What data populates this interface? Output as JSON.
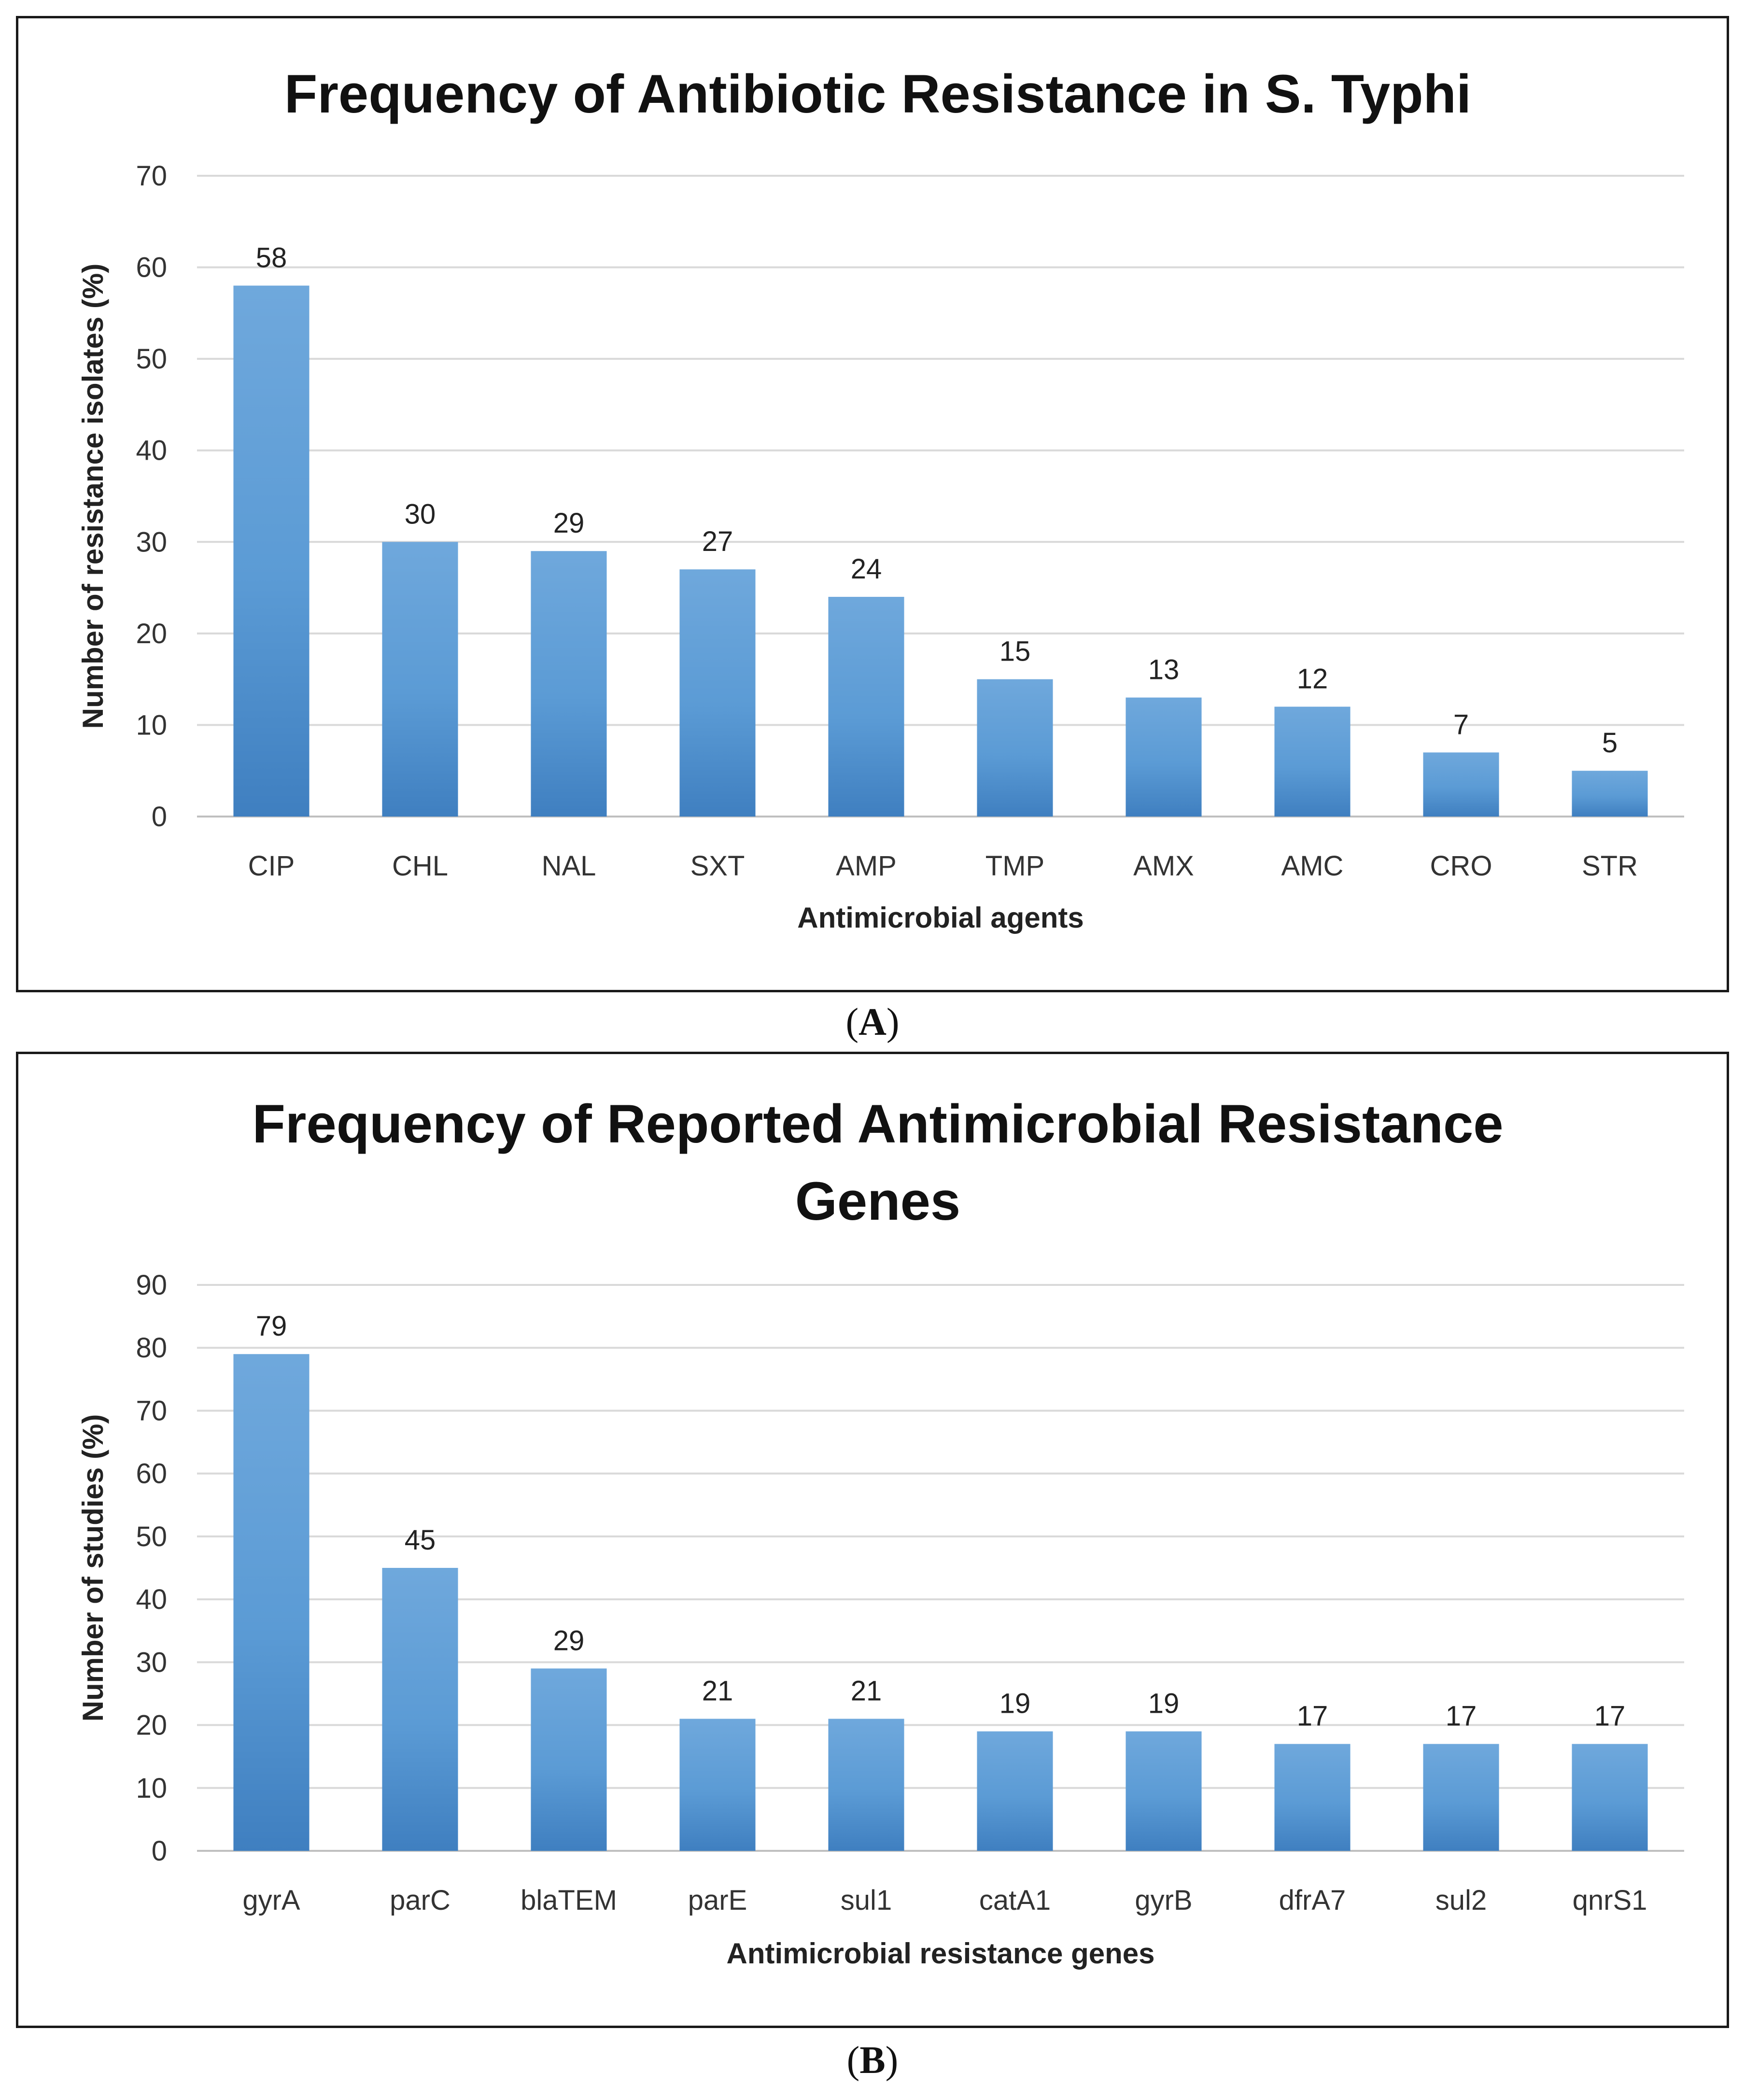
{
  "chart_data": [
    {
      "id": "A",
      "type": "bar",
      "title_lines": [
        "Frequency of Antibiotic Resistance in S. Typhi"
      ],
      "xlabel": "Antimicrobial agents",
      "ylabel": "Number of resistance isolates (%)",
      "ylim": [
        0,
        70
      ],
      "yticks": [
        0,
        10,
        20,
        30,
        40,
        50,
        60,
        70
      ],
      "grid": true,
      "categories": [
        "CIP",
        "CHL",
        "NAL",
        "SXT",
        "AMP",
        "TMP",
        "AMX",
        "AMC",
        "CRO",
        "STR"
      ],
      "values": [
        58,
        30,
        29,
        27,
        24,
        15,
        13,
        12,
        7,
        5
      ],
      "bar_color": "#5b9bd5",
      "caption": "A"
    },
    {
      "id": "B",
      "type": "bar",
      "title_lines": [
        "Frequency of Reported Antimicrobial Resistance",
        "Genes"
      ],
      "xlabel": "Antimicrobial resistance genes",
      "ylabel": "Number of studies (%)",
      "ylim": [
        0,
        90
      ],
      "yticks": [
        0,
        10,
        20,
        30,
        40,
        50,
        60,
        70,
        80,
        90
      ],
      "grid": true,
      "categories": [
        "gyrA",
        "parC",
        "blaTEM",
        "parE",
        "sul1",
        "catA1",
        "gyrB",
        "dfrA7",
        "sul2",
        "qnrS1"
      ],
      "values": [
        79,
        45,
        29,
        21,
        21,
        19,
        19,
        17,
        17,
        17
      ],
      "bar_color": "#5b9bd5",
      "caption": "B"
    }
  ]
}
